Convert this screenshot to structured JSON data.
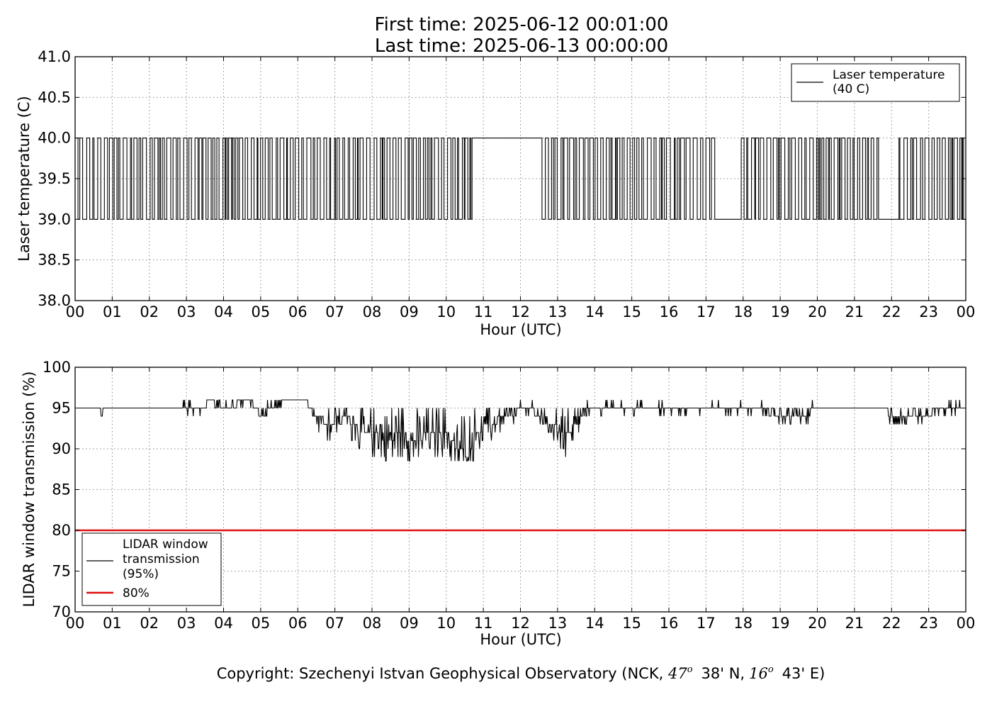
{
  "header": {
    "first_time": "First time: 2025-06-12 00:01:00",
    "last_time": "Last time: 2025-06-13 00:00:00"
  },
  "copyright": {
    "prefix": "Copyright: Szechenyi Istvan Geophysical Observatory (NCK, ",
    "lat_deg": "47",
    "lat_min": "38' N,",
    "lon_deg": "16",
    "lon_min": "43' E)",
    "degree_symbol": "o"
  },
  "chart_data": [
    {
      "type": "line",
      "title": "",
      "xlabel": "Hour (UTC)",
      "ylabel": "Laser temperature (C)",
      "xlim": [
        0,
        24
      ],
      "ylim": [
        38.0,
        41.0
      ],
      "x_tick_labels": [
        "00",
        "01",
        "02",
        "03",
        "04",
        "05",
        "06",
        "07",
        "08",
        "09",
        "10",
        "11",
        "12",
        "13",
        "14",
        "15",
        "16",
        "17",
        "18",
        "19",
        "20",
        "21",
        "22",
        "23",
        "00"
      ],
      "y_ticks": [
        38.0,
        38.5,
        39.0,
        39.5,
        40.0,
        40.5,
        41.0
      ],
      "y_tick_labels": [
        "38.0",
        "38.5",
        "39.0",
        "39.5",
        "40.0",
        "40.5",
        "41.0"
      ],
      "grid": true,
      "legend_position": "top-right",
      "series": [
        {
          "name": "Laser temperature\n(40 C)",
          "color": "#000000",
          "description_values": "Binary oscillation between 39.0 and 40.0 C",
          "segments": [
            {
              "from_hour": 0.0,
              "to_hour": 10.7,
              "behavior": "toggle",
              "low": 39.0,
              "high": 40.0
            },
            {
              "from_hour": 10.7,
              "to_hour": 12.55,
              "behavior": "constant",
              "value": 40.0
            },
            {
              "from_hour": 12.55,
              "to_hour": 17.25,
              "behavior": "toggle",
              "low": 39.0,
              "high": 40.0
            },
            {
              "from_hour": 17.25,
              "to_hour": 17.95,
              "behavior": "constant",
              "value": 39.0
            },
            {
              "from_hour": 17.95,
              "to_hour": 21.65,
              "behavior": "toggle",
              "low": 39.0,
              "high": 40.0
            },
            {
              "from_hour": 21.65,
              "to_hour": 22.2,
              "behavior": "constant",
              "value": 39.0
            },
            {
              "from_hour": 22.2,
              "to_hour": 24.0,
              "behavior": "toggle",
              "low": 39.0,
              "high": 40.0
            }
          ]
        }
      ]
    },
    {
      "type": "line",
      "title": "",
      "xlabel": "Hour (UTC)",
      "ylabel": "LIDAR window transmission (%)",
      "xlim": [
        0,
        24
      ],
      "ylim": [
        70,
        100
      ],
      "x_tick_labels": [
        "00",
        "01",
        "02",
        "03",
        "04",
        "05",
        "06",
        "07",
        "08",
        "09",
        "10",
        "11",
        "12",
        "13",
        "14",
        "15",
        "16",
        "17",
        "18",
        "19",
        "20",
        "21",
        "22",
        "23",
        "00"
      ],
      "y_ticks": [
        70,
        75,
        80,
        85,
        90,
        95,
        100
      ],
      "y_tick_labels": [
        "70",
        "75",
        "80",
        "85",
        "90",
        "95",
        "100"
      ],
      "grid": true,
      "legend_position": "bottom-left",
      "series": [
        {
          "name": "LIDAR window\ntransmission\n(95%)",
          "color": "#000000",
          "baseline": 95,
          "anchor_points": [
            {
              "x": 0.0,
              "y": 95
            },
            {
              "x": 0.7,
              "y": 95
            },
            {
              "x": 0.72,
              "y": 94
            },
            {
              "x": 0.74,
              "y": 95
            },
            {
              "x": 2.9,
              "y": 95
            },
            {
              "x": 3.5,
              "y": 95
            },
            {
              "x": 3.6,
              "y": 96
            },
            {
              "x": 4.0,
              "y": 95
            },
            {
              "x": 4.7,
              "y": 96
            },
            {
              "x": 5.0,
              "y": 94
            },
            {
              "x": 5.6,
              "y": 96
            },
            {
              "x": 6.2,
              "y": 96
            },
            {
              "x": 6.7,
              "y": 93
            },
            {
              "x": 7.3,
              "y": 94
            },
            {
              "x": 7.7,
              "y": 92
            },
            {
              "x": 8.2,
              "y": 92
            },
            {
              "x": 8.4,
              "y": 91
            },
            {
              "x": 8.8,
              "y": 92
            },
            {
              "x": 9.2,
              "y": 91
            },
            {
              "x": 9.6,
              "y": 92
            },
            {
              "x": 10.0,
              "y": 92
            },
            {
              "x": 10.3,
              "y": 90
            },
            {
              "x": 10.6,
              "y": 89
            },
            {
              "x": 10.8,
              "y": 92
            },
            {
              "x": 11.2,
              "y": 93
            },
            {
              "x": 11.6,
              "y": 94
            },
            {
              "x": 12.2,
              "y": 95
            },
            {
              "x": 12.8,
              "y": 93
            },
            {
              "x": 13.3,
              "y": 92
            },
            {
              "x": 13.8,
              "y": 95
            },
            {
              "x": 14.5,
              "y": 95
            },
            {
              "x": 15.5,
              "y": 95
            },
            {
              "x": 16.5,
              "y": 95
            },
            {
              "x": 17.5,
              "y": 95
            },
            {
              "x": 18.5,
              "y": 95
            },
            {
              "x": 19.2,
              "y": 94
            },
            {
              "x": 19.6,
              "y": 94
            },
            {
              "x": 19.9,
              "y": 95
            },
            {
              "x": 22.0,
              "y": 94
            },
            {
              "x": 22.7,
              "y": 94
            },
            {
              "x": 23.5,
              "y": 95
            },
            {
              "x": 24.0,
              "y": 95
            }
          ]
        },
        {
          "name": "80%",
          "color": "#e01010",
          "constant": 80
        }
      ]
    }
  ]
}
